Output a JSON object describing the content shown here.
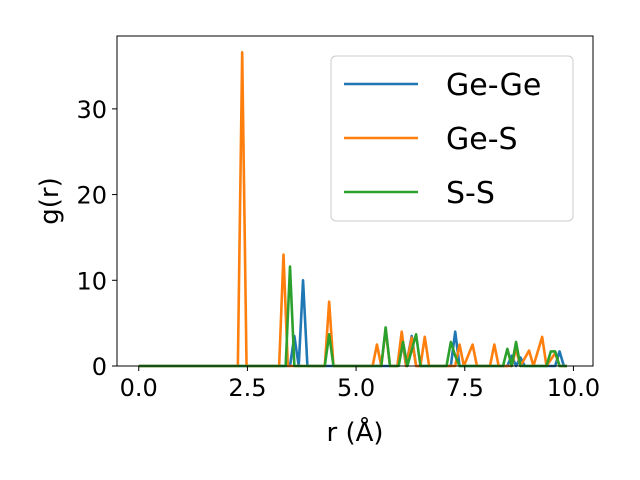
{
  "chart_data": {
    "type": "line",
    "xlabel": "r (Å)",
    "ylabel": "g(r)",
    "xlim": [
      -0.5,
      10.45
    ],
    "ylim": [
      0,
      38.5
    ],
    "x_ticks": [
      0.0,
      2.5,
      5.0,
      7.5,
      10.0
    ],
    "x_tick_labels": [
      "0.0",
      "2.5",
      "5.0",
      "7.5",
      "10.0"
    ],
    "y_ticks": [
      0,
      10,
      20,
      30
    ],
    "y_tick_labels": [
      "0",
      "10",
      "20",
      "30"
    ],
    "grid": false,
    "legend_position": "top-right",
    "series": [
      {
        "name": "Ge-Ge",
        "color": "#1f77b4",
        "points": [
          [
            0.0,
            0
          ],
          [
            3.48,
            0
          ],
          [
            3.58,
            3.5
          ],
          [
            3.68,
            0
          ],
          [
            3.78,
            10.0
          ],
          [
            3.88,
            0
          ],
          [
            5.95,
            0
          ],
          [
            6.05,
            3.5
          ],
          [
            6.15,
            0
          ],
          [
            6.28,
            3.5
          ],
          [
            6.38,
            0
          ],
          [
            7.18,
            0
          ],
          [
            7.28,
            4.0
          ],
          [
            7.38,
            0
          ],
          [
            8.48,
            0
          ],
          [
            8.58,
            1.2
          ],
          [
            8.68,
            0
          ],
          [
            8.78,
            1.0
          ],
          [
            8.88,
            0
          ],
          [
            9.58,
            0
          ],
          [
            9.68,
            1.7
          ],
          [
            9.78,
            0
          ],
          [
            9.85,
            0
          ]
        ]
      },
      {
        "name": "Ge-S",
        "color": "#ff7f0e",
        "points": [
          [
            0.0,
            0
          ],
          [
            2.28,
            0
          ],
          [
            2.38,
            36.6
          ],
          [
            2.48,
            0
          ],
          [
            3.23,
            0
          ],
          [
            3.33,
            13.0
          ],
          [
            3.43,
            0
          ],
          [
            4.28,
            0
          ],
          [
            4.38,
            7.5
          ],
          [
            4.48,
            0
          ],
          [
            5.38,
            0
          ],
          [
            5.48,
            2.5
          ],
          [
            5.58,
            0
          ],
          [
            5.68,
            4.3
          ],
          [
            5.78,
            0
          ],
          [
            5.95,
            0
          ],
          [
            6.05,
            4.0
          ],
          [
            6.15,
            0
          ],
          [
            6.28,
            3.3
          ],
          [
            6.38,
            0
          ],
          [
            6.48,
            0
          ],
          [
            6.58,
            3.4
          ],
          [
            6.68,
            0
          ],
          [
            7.28,
            0
          ],
          [
            7.38,
            2.5
          ],
          [
            7.48,
            0
          ],
          [
            7.68,
            2.5
          ],
          [
            7.78,
            0
          ],
          [
            8.08,
            0
          ],
          [
            8.18,
            2.5
          ],
          [
            8.28,
            0
          ],
          [
            8.58,
            0
          ],
          [
            8.68,
            2.0
          ],
          [
            8.78,
            0
          ],
          [
            8.98,
            1.8
          ],
          [
            9.08,
            0
          ],
          [
            9.28,
            3.4
          ],
          [
            9.38,
            0
          ],
          [
            9.58,
            1.5
          ],
          [
            9.68,
            0
          ],
          [
            9.85,
            0
          ]
        ]
      },
      {
        "name": "S-S",
        "color": "#2ca02c",
        "points": [
          [
            0.0,
            0
          ],
          [
            3.38,
            0
          ],
          [
            3.48,
            11.6
          ],
          [
            3.58,
            0
          ],
          [
            4.28,
            0
          ],
          [
            4.38,
            3.7
          ],
          [
            4.48,
            0
          ],
          [
            5.58,
            0
          ],
          [
            5.68,
            4.5
          ],
          [
            5.78,
            0
          ],
          [
            5.98,
            0
          ],
          [
            6.08,
            2.8
          ],
          [
            6.18,
            0
          ],
          [
            6.38,
            3.7
          ],
          [
            6.48,
            0
          ],
          [
            7.08,
            0
          ],
          [
            7.18,
            2.8
          ],
          [
            7.28,
            1.2
          ],
          [
            7.38,
            0
          ],
          [
            8.38,
            0
          ],
          [
            8.48,
            2.0
          ],
          [
            8.58,
            0
          ],
          [
            8.68,
            2.8
          ],
          [
            8.78,
            0
          ],
          [
            9.38,
            0
          ],
          [
            9.48,
            1.7
          ],
          [
            9.58,
            1.7
          ],
          [
            9.68,
            0
          ],
          [
            9.85,
            0
          ]
        ]
      }
    ]
  }
}
